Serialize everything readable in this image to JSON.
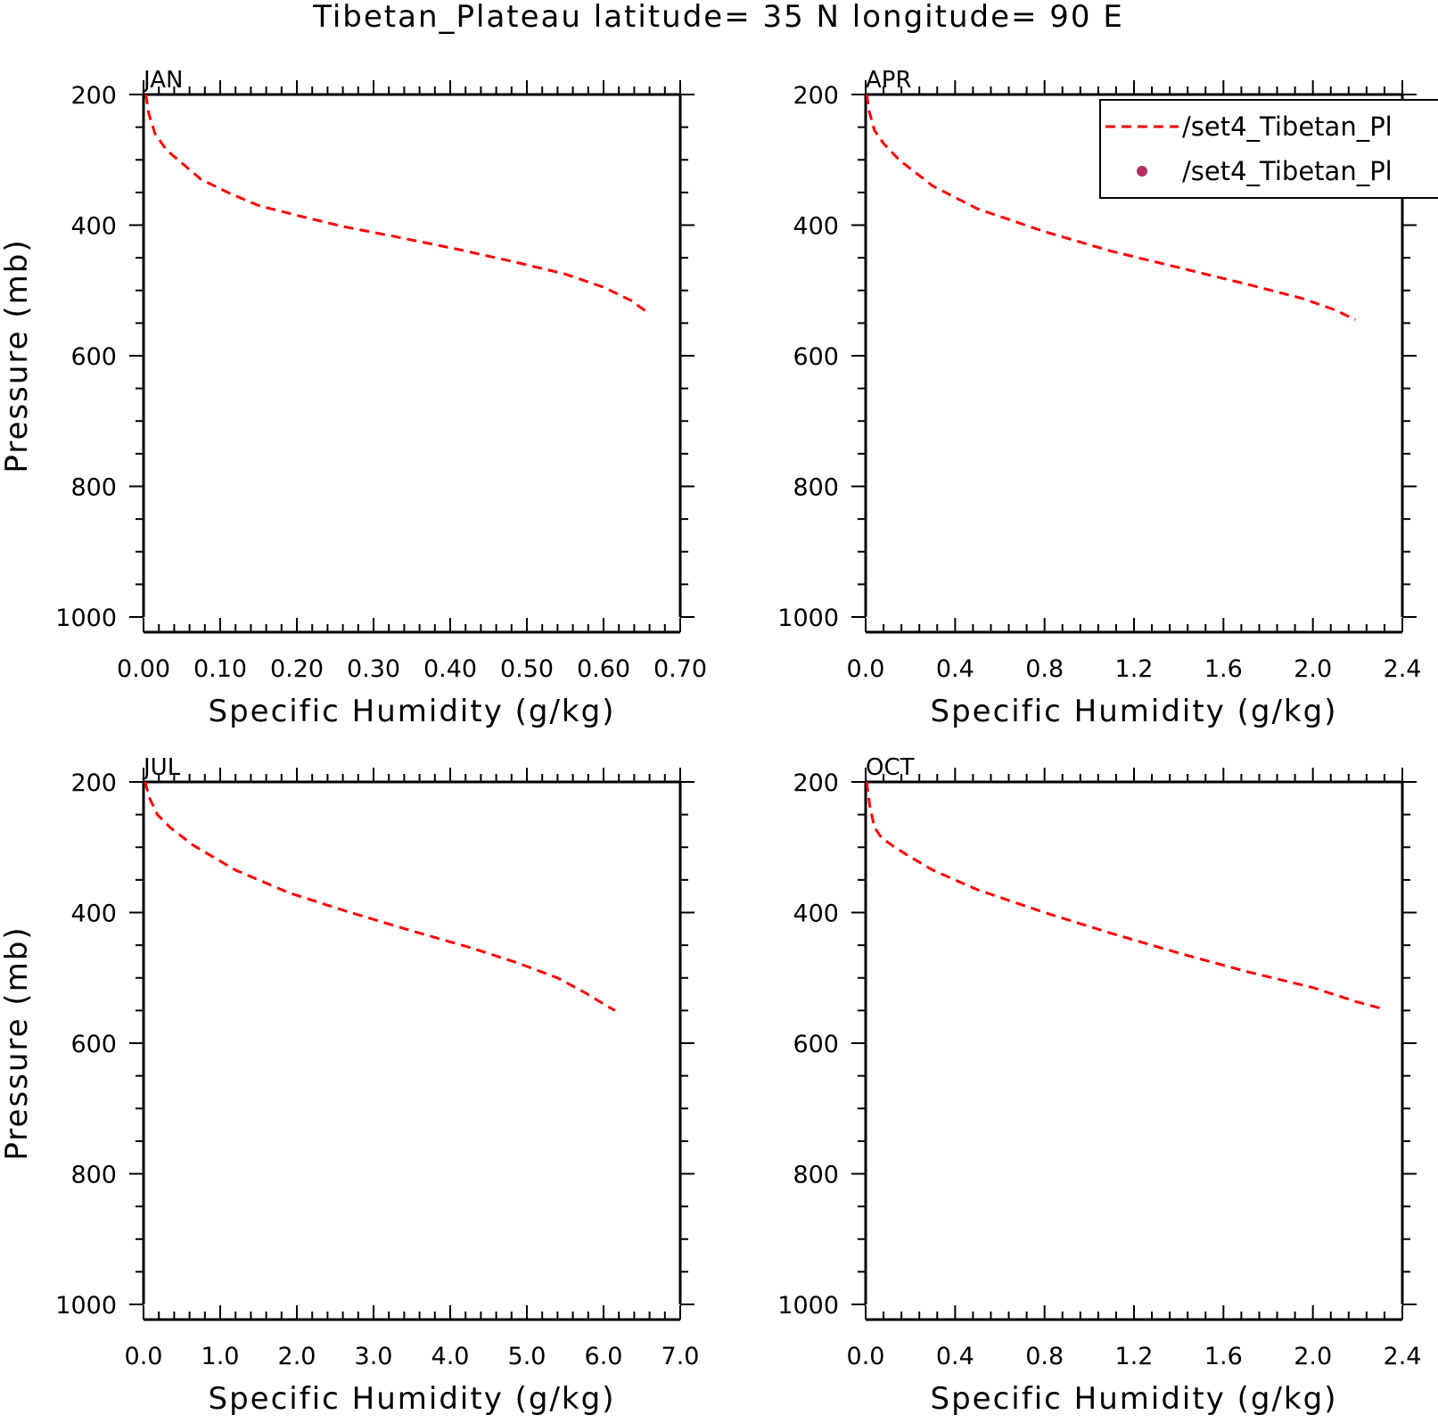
{
  "title": "Tibetan_Plateau  latitude= 35 N longitude= 90 E",
  "legend": {
    "entries": [
      {
        "label": "/set4_Tibetan_Pl",
        "style": "dashed-line",
        "color": "#ff0000"
      },
      {
        "label": "/set4_Tibetan_Pl",
        "style": "dot-marker",
        "color": "#b03060"
      }
    ],
    "placement": "top-right, clipped at right edge"
  },
  "colors": {
    "line": "#ff0000",
    "marker": "#b03060",
    "axes": "#000000"
  },
  "chart_data": [
    {
      "type": "line",
      "panel": "JAN",
      "xlabel": "Specific Humidity (g/kg)",
      "ylabel": "Pressure (mb)",
      "xlim": [
        0,
        0.7
      ],
      "ylim": [
        1000,
        200
      ],
      "y_inverted": true,
      "x_ticks": [
        "0.00",
        "0.10",
        "0.20",
        "0.30",
        "0.40",
        "0.50",
        "0.60",
        "0.70"
      ],
      "y_ticks": [
        "200",
        "400",
        "600",
        "800",
        "1000"
      ],
      "series": [
        {
          "x": [
            0.003,
            0.007,
            0.015,
            0.03,
            0.05,
            0.075,
            0.11,
            0.15,
            0.2,
            0.26,
            0.33,
            0.41,
            0.49,
            0.55,
            0.6,
            0.635,
            0.653,
            0.657
          ],
          "y": [
            200,
            230,
            260,
            285,
            305,
            330,
            350,
            370,
            385,
            402,
            418,
            437,
            458,
            475,
            495,
            515,
            530,
            538
          ]
        }
      ]
    },
    {
      "type": "line",
      "panel": "APR",
      "xlabel": "Specific Humidity (g/kg)",
      "ylabel": "",
      "xlim": [
        0,
        2.4
      ],
      "ylim": [
        1000,
        200
      ],
      "y_inverted": true,
      "x_ticks": [
        "0.0",
        "0.4",
        "0.8",
        "1.2",
        "1.6",
        "2.0",
        "2.4"
      ],
      "y_ticks": [
        "200",
        "400",
        "600",
        "800",
        "1000"
      ],
      "series": [
        {
          "x": [
            0.005,
            0.015,
            0.04,
            0.08,
            0.15,
            0.3,
            0.5,
            0.8,
            1.1,
            1.4,
            1.7,
            1.95,
            2.1,
            2.19
          ],
          "y": [
            200,
            225,
            255,
            275,
            300,
            340,
            375,
            410,
            440,
            465,
            490,
            512,
            530,
            545
          ]
        }
      ]
    },
    {
      "type": "line",
      "panel": "JUL",
      "xlabel": "Specific Humidity (g/kg)",
      "ylabel": "Pressure (mb)",
      "xlim": [
        0,
        7.0
      ],
      "ylim": [
        1000,
        200
      ],
      "y_inverted": true,
      "x_ticks": [
        "0.0",
        "1.0",
        "2.0",
        "3.0",
        "4.0",
        "5.0",
        "6.0",
        "7.0"
      ],
      "y_ticks": [
        "200",
        "400",
        "600",
        "800",
        "1000"
      ],
      "series": [
        {
          "x": [
            0.02,
            0.08,
            0.18,
            0.35,
            0.65,
            1.2,
            1.9,
            2.7,
            3.5,
            4.3,
            4.9,
            5.4,
            5.75,
            6.0,
            6.15
          ],
          "y": [
            200,
            225,
            250,
            270,
            297,
            335,
            370,
            400,
            428,
            455,
            478,
            500,
            522,
            540,
            550
          ]
        }
      ]
    },
    {
      "type": "line",
      "panel": "OCT",
      "xlabel": "Specific Humidity (g/kg)",
      "ylabel": "",
      "xlim": [
        0,
        2.4
      ],
      "ylim": [
        1000,
        200
      ],
      "y_inverted": true,
      "x_ticks": [
        "0.0",
        "0.4",
        "0.8",
        "1.2",
        "1.6",
        "2.0",
        "2.4"
      ],
      "y_ticks": [
        "200",
        "400",
        "600",
        "800",
        "1000"
      ],
      "series": [
        {
          "x": [
            0.005,
            0.01,
            0.02,
            0.04,
            0.07,
            0.13,
            0.2,
            0.3,
            0.5,
            0.8,
            1.1,
            1.4,
            1.7,
            2.0,
            2.2,
            2.32
          ],
          "y": [
            200,
            215,
            240,
            270,
            285,
            300,
            315,
            335,
            365,
            400,
            432,
            462,
            490,
            515,
            537,
            548
          ]
        }
      ]
    }
  ]
}
